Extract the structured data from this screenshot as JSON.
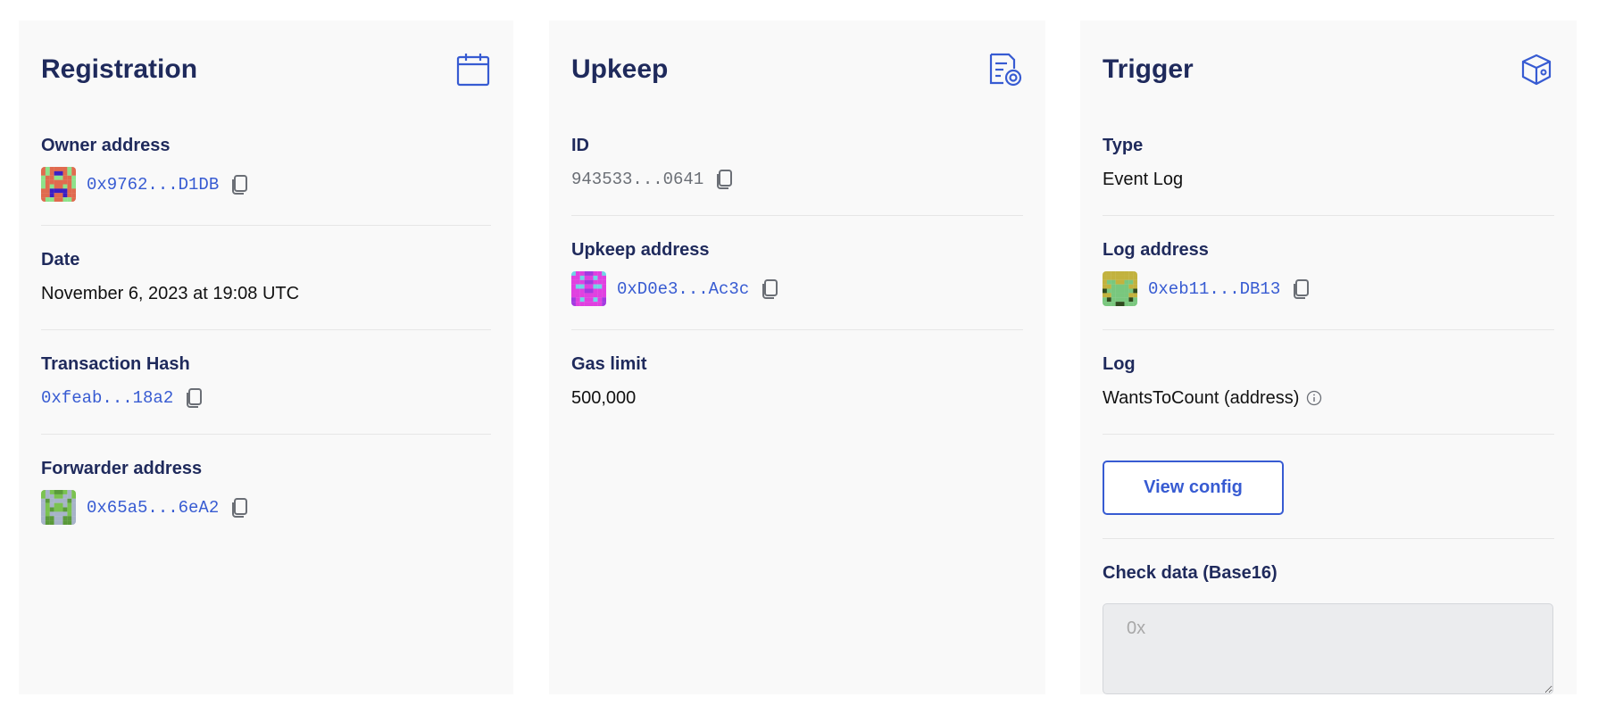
{
  "colors": {
    "accent": "#375bd2",
    "heading": "#1f2a5c",
    "panel": "#f9f9f9"
  },
  "registration": {
    "title": "Registration",
    "icon": "calendar-icon",
    "owner_label": "Owner address",
    "owner_value": "0x9762...D1DB",
    "date_label": "Date",
    "date_value": "November 6, 2023 at 19:08 UTC",
    "tx_label": "Transaction Hash",
    "tx_value": "0xfeab...18a2",
    "forwarder_label": "Forwarder address",
    "forwarder_value": "0x65a5...6eA2"
  },
  "upkeep": {
    "title": "Upkeep",
    "icon": "document-gear-icon",
    "id_label": "ID",
    "id_value": "943533...0641",
    "address_label": "Upkeep address",
    "address_value": "0xD0e3...Ac3c",
    "gas_label": "Gas limit",
    "gas_value": "500,000"
  },
  "trigger": {
    "title": "Trigger",
    "icon": "cube-icon",
    "type_label": "Type",
    "type_value": "Event Log",
    "log_address_label": "Log address",
    "log_address_value": "0xeb11...DB13",
    "log_label": "Log",
    "log_value": "WantsToCount (address)",
    "view_config": "View config",
    "check_label": "Check data (Base16)",
    "check_placeholder": "0x",
    "check_value": ""
  }
}
